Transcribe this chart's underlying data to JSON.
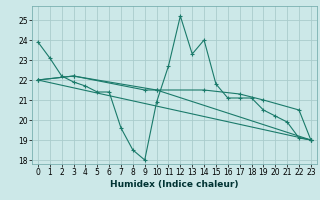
{
  "title": "",
  "xlabel": "Humidex (Indice chaleur)",
  "ylabel": "",
  "bg_color": "#cce8e8",
  "grid_color": "#aacccc",
  "line_color": "#1a7a6a",
  "xlim": [
    -0.5,
    23.5
  ],
  "ylim": [
    17.8,
    25.7
  ],
  "yticks": [
    18,
    19,
    20,
    21,
    22,
    23,
    24,
    25
  ],
  "xticks": [
    0,
    1,
    2,
    3,
    4,
    5,
    6,
    7,
    8,
    9,
    10,
    11,
    12,
    13,
    14,
    15,
    16,
    17,
    18,
    19,
    20,
    21,
    22,
    23
  ],
  "series": [
    {
      "x": [
        0,
        1,
        2,
        3,
        4,
        5,
        6,
        7,
        8,
        9,
        10,
        11,
        12,
        13,
        14,
        15,
        16,
        17,
        18,
        19,
        20,
        21,
        22,
        23
      ],
      "y": [
        23.9,
        23.1,
        22.2,
        21.9,
        21.7,
        21.4,
        21.4,
        19.6,
        18.5,
        18.0,
        20.9,
        22.7,
        25.2,
        23.3,
        24.0,
        21.8,
        21.1,
        21.1,
        21.1,
        20.5,
        20.2,
        19.9,
        19.1,
        19.0
      ]
    },
    {
      "x": [
        0,
        3,
        9,
        10,
        14,
        17,
        19,
        22,
        23
      ],
      "y": [
        22.0,
        22.2,
        21.5,
        21.5,
        21.5,
        21.3,
        21.0,
        20.5,
        19.0
      ]
    },
    {
      "x": [
        0,
        23
      ],
      "y": [
        22.0,
        19.0
      ]
    },
    {
      "x": [
        0,
        3,
        10,
        23
      ],
      "y": [
        22.0,
        22.2,
        21.5,
        19.0
      ]
    }
  ]
}
